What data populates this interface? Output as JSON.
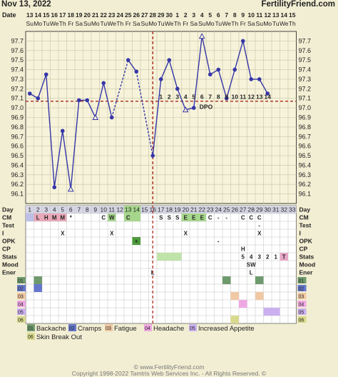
{
  "header": {
    "date": "Nov 13, 2022",
    "site": "FertilityFriend.com"
  },
  "labels": {
    "date_label": "Date",
    "day_label": "Day",
    "dpo_label": "DPO"
  },
  "dates_top": [
    "13",
    "14",
    "15",
    "16",
    "17",
    "18",
    "19",
    "20",
    "21",
    "22",
    "23",
    "24",
    "25",
    "26",
    "27",
    "28",
    "29",
    "30",
    "1",
    "2",
    "3",
    "4",
    "5",
    "6",
    "7",
    "8",
    "9",
    "10",
    "11",
    "12",
    "13",
    "14",
    "15"
  ],
  "weekdays": [
    "Su",
    "Mo",
    "Tu",
    "We",
    "Th",
    "Fr",
    "Sa",
    "Su",
    "Mo",
    "Tu",
    "We",
    "Th",
    "Fr",
    "Sa",
    "Su",
    "Mo",
    "Tu",
    "We",
    "Th",
    "Fr",
    "Sa",
    "Su",
    "Mo",
    "Tu",
    "We",
    "Th",
    "Fr",
    "Sa",
    "Su",
    "Mo",
    "Tu",
    "We",
    "Th"
  ],
  "dpo_numbers": [
    "1",
    "2",
    "3",
    "4",
    "5",
    "6",
    "7",
    "8",
    "9",
    "10",
    "11",
    "12",
    "13",
    "14"
  ],
  "chart_data": {
    "type": "line",
    "xlabel": "Day",
    "ylabel": "",
    "ylim": [
      96.0,
      97.8
    ],
    "y_ticks": [
      "97.7",
      "97.6",
      "97.5",
      "97.4",
      "97.3",
      "97.2",
      "97.1",
      "97.0",
      "96.9",
      "96.8",
      "96.7",
      "96.6",
      "96.5",
      "96.4",
      "96.3",
      "96.2",
      "96.1"
    ],
    "days": [
      1,
      2,
      3,
      4,
      5,
      6,
      7,
      8,
      9,
      10,
      11,
      12,
      13,
      14,
      15,
      16,
      17,
      18,
      19,
      20,
      21,
      22,
      23,
      24,
      25,
      26,
      27,
      28,
      29,
      30,
      31,
      32,
      33
    ],
    "temps": [
      97.15,
      97.1,
      97.35,
      96.17,
      96.76,
      96.15,
      97.08,
      97.08,
      96.9,
      97.26,
      96.9,
      null,
      97.5,
      97.38,
      null,
      96.5,
      97.3,
      97.5,
      97.2,
      96.98,
      97.0,
      97.75,
      97.35,
      97.4,
      97.1,
      97.4,
      97.7,
      97.3,
      97.3,
      97.15,
      null,
      null,
      null
    ],
    "open_markers": [
      6,
      9,
      20,
      22
    ],
    "dashed_segments": [
      [
        11,
        13
      ],
      [
        14,
        16
      ]
    ],
    "coverline": 97.07,
    "ovulation_day": 16,
    "grid": true,
    "line_color": "#3636a8",
    "coverline_color": "#b03a2e"
  },
  "rows": [
    {
      "label": "CM",
      "cells": {
        "2": "L",
        "3": "H",
        "4": "M",
        "5": "M",
        "6": "*",
        "10": "C",
        "11": "W",
        "13": "C",
        "17": "S",
        "18": "S",
        "19": "S",
        "20": "E",
        "21": "E",
        "22": "E",
        "23": "C",
        "24": "-",
        "25": "-",
        "27": "C",
        "28": "C",
        "29": "C"
      }
    },
    {
      "label": "Test",
      "cells": {
        "29": "-"
      }
    },
    {
      "label": "I",
      "cells": {
        "5": "X",
        "11": "X",
        "20": "X",
        "29": "X"
      }
    },
    {
      "label": "OPK",
      "cells": {
        "14": "+",
        "24": "-"
      }
    },
    {
      "label": "CP",
      "cells": {
        "27": "H"
      }
    },
    {
      "label": "Stats",
      "cells": {
        "27": "5",
        "28": "4",
        "29": "3",
        "30": "2",
        "31": "1",
        "32": "T"
      }
    },
    {
      "label": "Mood",
      "cells": {
        "28": "SW"
      }
    },
    {
      "label": "Ener",
      "cells": {
        "16": "L",
        "28": "L"
      }
    }
  ],
  "symptom_rows": [
    "01",
    "02",
    "03",
    "04",
    "05",
    "06"
  ],
  "legend": [
    {
      "num": "01",
      "label": "Backache",
      "color": "#6f9a6e"
    },
    {
      "num": "02",
      "label": "Cramps",
      "color": "#6677cc"
    },
    {
      "num": "03",
      "label": "Fatigue",
      "color": "#f0c8a4"
    },
    {
      "num": "04",
      "label": "Headache",
      "color": "#f0a8e4"
    },
    {
      "num": "05",
      "label": "Increased Appetite",
      "color": "#cbb0f0"
    },
    {
      "num": "06",
      "label": "Skin Break Out",
      "color": "#d9d98e"
    }
  ],
  "footer": {
    "line1": "© www.FertilityFriend.com",
    "line2": "Copyright 1998-2022 Tamtris Web Services Inc. - All Rights Reserved. ©"
  }
}
